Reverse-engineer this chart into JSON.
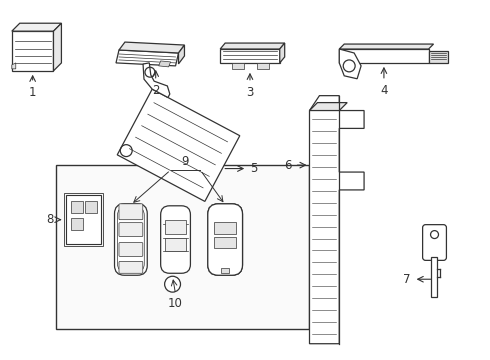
{
  "bg_color": "#ffffff",
  "line_color": "#333333",
  "lw": 0.9,
  "thin_lw": 0.5
}
